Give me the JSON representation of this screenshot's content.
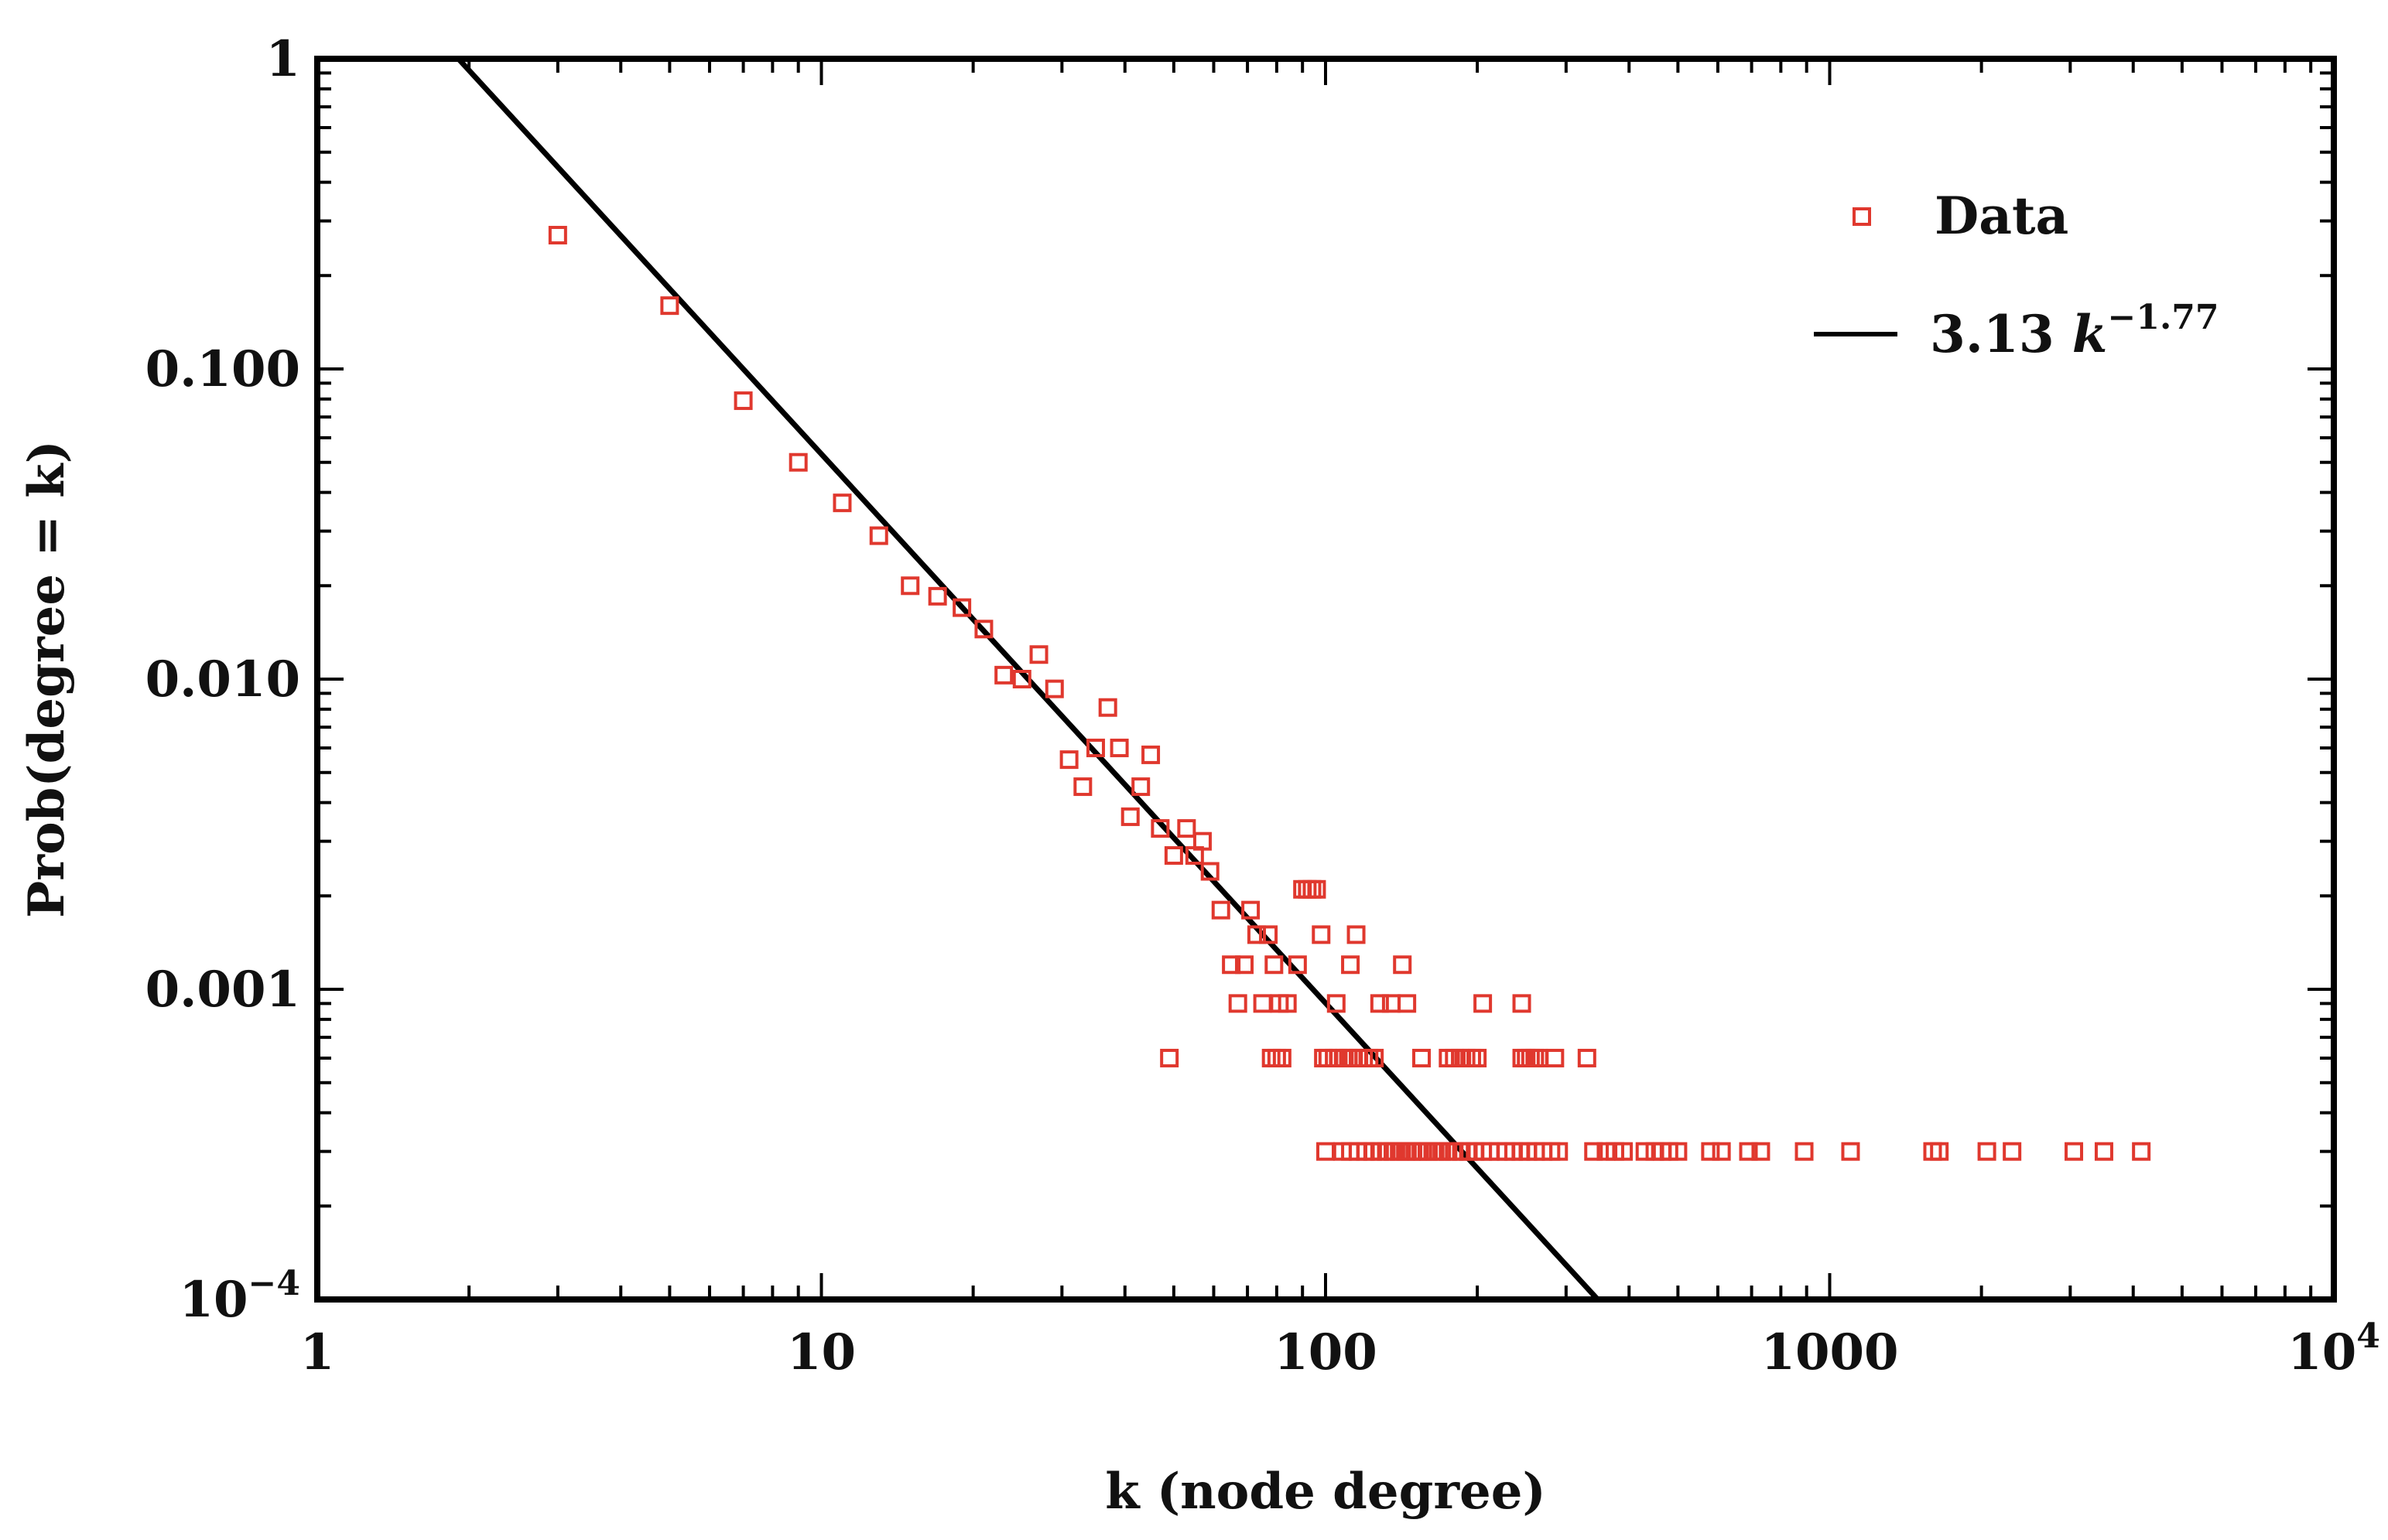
{
  "chart_data": {
    "type": "scatter",
    "title": "",
    "xlabel": "k (node degree)",
    "ylabel": "Prob(degree = k)",
    "xscale": "log",
    "yscale": "log",
    "xlim": [
      1,
      10000
    ],
    "ylim": [
      0.0001,
      1
    ],
    "x_ticks": [
      {
        "value": 1,
        "label": "1"
      },
      {
        "value": 10,
        "label": "10"
      },
      {
        "value": 100,
        "label": "100"
      },
      {
        "value": 1000,
        "label": "1000"
      },
      {
        "value": 10000,
        "label": "10",
        "sup": "4"
      }
    ],
    "y_ticks": [
      {
        "value": 1,
        "label": "1"
      },
      {
        "value": 0.1,
        "label": "0.100"
      },
      {
        "value": 0.01,
        "label": "0.010"
      },
      {
        "value": 0.001,
        "label": "0.001"
      },
      {
        "value": 0.0001,
        "label": "10",
        "sup": "−4"
      }
    ],
    "legend": {
      "position": "top-right",
      "data_label": "Data",
      "fit_coef": "3.13",
      "fit_var": "k",
      "fit_exp": "−1.77"
    },
    "colors": {
      "data": "#e0382e",
      "fit": "#000000",
      "axes": "#000000"
    },
    "fit": {
      "name": "3.13 k^-1.77",
      "coefficient": 3.13,
      "exponent": -1.77
    },
    "series": [
      {
        "name": "Data",
        "points": [
          [
            3,
            0.27
          ],
          [
            5,
            0.16
          ],
          [
            7,
            0.079
          ],
          [
            9,
            0.05
          ],
          [
            11,
            0.037
          ],
          [
            13,
            0.029
          ],
          [
            15,
            0.02
          ],
          [
            17,
            0.0185
          ],
          [
            19,
            0.017
          ],
          [
            21,
            0.0145
          ],
          [
            23,
            0.0103
          ],
          [
            25,
            0.01
          ],
          [
            27,
            0.012
          ],
          [
            29,
            0.0093
          ],
          [
            31,
            0.0055
          ],
          [
            33,
            0.0045
          ],
          [
            35,
            0.006
          ],
          [
            37,
            0.0081
          ],
          [
            39,
            0.006
          ],
          [
            41,
            0.0036
          ],
          [
            43,
            0.0045
          ],
          [
            45,
            0.0057
          ],
          [
            47,
            0.0033
          ],
          [
            50,
            0.0027
          ],
          [
            53,
            0.0033
          ],
          [
            55,
            0.0027
          ],
          [
            57,
            0.003
          ],
          [
            59,
            0.0024
          ],
          [
            62,
            0.0018
          ],
          [
            65,
            0.0012
          ],
          [
            67,
            0.0009
          ],
          [
            69,
            0.0012
          ],
          [
            71,
            0.0018
          ],
          [
            73,
            0.0015
          ],
          [
            75,
            0.0009
          ],
          [
            77,
            0.0015
          ],
          [
            79,
            0.0012
          ],
          [
            81,
            0.0009
          ],
          [
            84,
            0.0009
          ],
          [
            88,
            0.0012
          ],
          [
            90,
            0.0021
          ],
          [
            92,
            0.0021
          ],
          [
            94,
            0.0021
          ],
          [
            96,
            0.0021
          ],
          [
            98,
            0.0015
          ],
          [
            105,
            0.0009
          ],
          [
            112,
            0.0012
          ],
          [
            115,
            0.0015
          ],
          [
            128,
            0.0009
          ],
          [
            135,
            0.0009
          ],
          [
            142,
            0.0012
          ],
          [
            145,
            0.0009
          ],
          [
            205,
            0.0009
          ],
          [
            245,
            0.0009
          ],
          [
            49,
            0.0006
          ],
          [
            78,
            0.0006
          ],
          [
            80,
            0.0006
          ],
          [
            82,
            0.0006
          ],
          [
            99,
            0.0006
          ],
          [
            101,
            0.0006
          ],
          [
            104,
            0.0006
          ],
          [
            106,
            0.0006
          ],
          [
            109,
            0.0006
          ],
          [
            111,
            0.0006
          ],
          [
            113,
            0.0006
          ],
          [
            116,
            0.0006
          ],
          [
            119,
            0.0006
          ],
          [
            122,
            0.0006
          ],
          [
            125,
            0.0006
          ],
          [
            155,
            0.0006
          ],
          [
            175,
            0.0006
          ],
          [
            180,
            0.0006
          ],
          [
            185,
            0.0006
          ],
          [
            190,
            0.0006
          ],
          [
            195,
            0.0006
          ],
          [
            200,
            0.0006
          ],
          [
            245,
            0.0006
          ],
          [
            250,
            0.0006
          ],
          [
            255,
            0.0006
          ],
          [
            260,
            0.0006
          ],
          [
            265,
            0.0006
          ],
          [
            285,
            0.0006
          ],
          [
            330,
            0.0006
          ],
          [
            100,
            0.0003
          ],
          [
            108,
            0.0003
          ],
          [
            112,
            0.0003
          ],
          [
            116,
            0.0003
          ],
          [
            120,
            0.0003
          ],
          [
            124,
            0.0003
          ],
          [
            128,
            0.0003
          ],
          [
            132,
            0.0003
          ],
          [
            136,
            0.0003
          ],
          [
            140,
            0.0003
          ],
          [
            144,
            0.0003
          ],
          [
            148,
            0.0003
          ],
          [
            152,
            0.0003
          ],
          [
            156,
            0.0003
          ],
          [
            160,
            0.0003
          ],
          [
            165,
            0.0003
          ],
          [
            170,
            0.0003
          ],
          [
            175,
            0.0003
          ],
          [
            180,
            0.0003
          ],
          [
            186,
            0.0003
          ],
          [
            192,
            0.0003
          ],
          [
            198,
            0.0003
          ],
          [
            205,
            0.0003
          ],
          [
            212,
            0.0003
          ],
          [
            220,
            0.0003
          ],
          [
            228,
            0.0003
          ],
          [
            236,
            0.0003
          ],
          [
            244,
            0.0003
          ],
          [
            252,
            0.0003
          ],
          [
            261,
            0.0003
          ],
          [
            270,
            0.0003
          ],
          [
            280,
            0.0003
          ],
          [
            290,
            0.0003
          ],
          [
            340,
            0.0003
          ],
          [
            360,
            0.0003
          ],
          [
            375,
            0.0003
          ],
          [
            390,
            0.0003
          ],
          [
            430,
            0.0003
          ],
          [
            450,
            0.0003
          ],
          [
            465,
            0.0003
          ],
          [
            480,
            0.0003
          ],
          [
            500,
            0.0003
          ],
          [
            580,
            0.0003
          ],
          [
            610,
            0.0003
          ],
          [
            690,
            0.0003
          ],
          [
            730,
            0.0003
          ],
          [
            890,
            0.0003
          ],
          [
            1100,
            0.0003
          ],
          [
            1600,
            0.0003
          ],
          [
            1650,
            0.0003
          ],
          [
            2050,
            0.0003
          ],
          [
            2300,
            0.0003
          ],
          [
            3050,
            0.0003
          ],
          [
            3500,
            0.0003
          ],
          [
            4150,
            0.0003
          ]
        ]
      }
    ]
  }
}
